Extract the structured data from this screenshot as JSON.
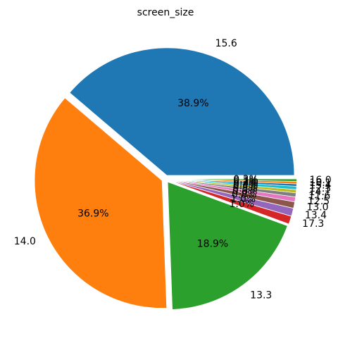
{
  "chart_data": {
    "type": "pie",
    "title": "screen_size",
    "start_angle_deg": 0,
    "direction": "counterclockwise",
    "explode": 0.03,
    "slices": [
      {
        "label": "15.6",
        "pct_label": "38.9%",
        "value": 38.9,
        "color": "#1f77b4"
      },
      {
        "label": "14.0",
        "pct_label": "36.9%",
        "value": 36.9,
        "color": "#ff7f0e"
      },
      {
        "label": "13.3",
        "pct_label": "18.9%",
        "value": 18.9,
        "color": "#2ca02c"
      },
      {
        "label": "17.3",
        "pct_label": "1.0%",
        "value": 1.0,
        "color": "#d62728"
      },
      {
        "label": "13.4",
        "pct_label": "1.0%",
        "value": 1.0,
        "color": "#9467bd"
      },
      {
        "label": "13.0",
        "pct_label": "0.8%",
        "value": 0.8,
        "color": "#8c564b"
      },
      {
        "label": "12.5",
        "pct_label": "0.6%",
        "value": 0.6,
        "color": "#e377c2"
      },
      {
        "label": "11.6",
        "pct_label": "0.5%",
        "value": 0.5,
        "color": "#7f7f7f"
      },
      {
        "label": "14.1",
        "pct_label": "0.4%",
        "value": 0.4,
        "color": "#bcbd22"
      },
      {
        "label": "12.3",
        "pct_label": "0.4%",
        "value": 0.4,
        "color": "#17becf"
      },
      {
        "label": "15.4",
        "pct_label": "0.3%",
        "value": 0.3,
        "color": "#1f77b4"
      },
      {
        "label": "10.1",
        "pct_label": "0.3%",
        "value": 0.3,
        "color": "#ff7f0e"
      },
      {
        "label": "16.0",
        "pct_label": "0.3%",
        "value": 0.3,
        "color": "#2ca02c"
      }
    ]
  }
}
